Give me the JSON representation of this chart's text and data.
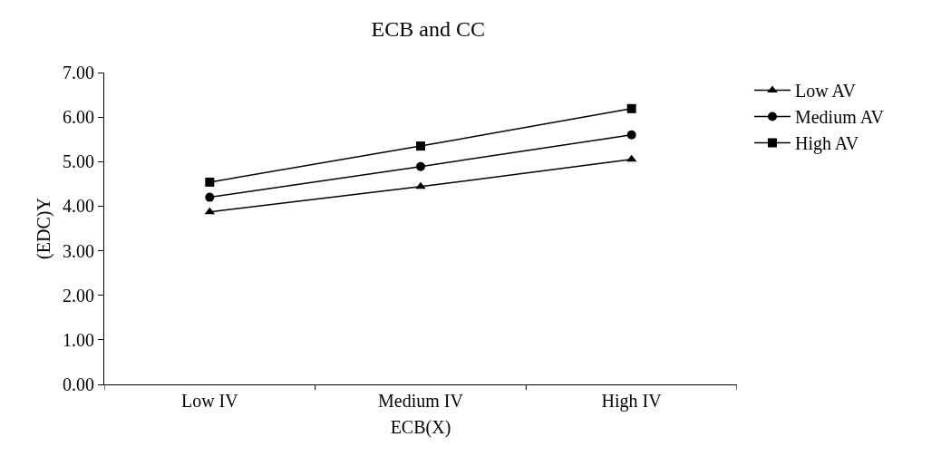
{
  "chart_data": {
    "type": "line",
    "title": "ECB and CC",
    "xlabel": "ECB(X)",
    "ylabel": "(EDC)Y",
    "categories": [
      "Low IV",
      "Medium IV",
      "High IV"
    ],
    "series": [
      {
        "name": "Low AV",
        "color": "#000000",
        "marker": "triangle",
        "values": [
          3.87,
          4.44,
          5.05
        ]
      },
      {
        "name": "Medium AV",
        "color": "#000000",
        "marker": "circle",
        "values": [
          4.2,
          4.89,
          5.6
        ]
      },
      {
        "name": "High AV",
        "color": "#000000",
        "marker": "square",
        "values": [
          4.54,
          5.35,
          6.19
        ]
      }
    ],
    "ylim": [
      0,
      7
    ],
    "yticks": [
      {
        "value": 0,
        "label": "0.00"
      },
      {
        "value": 1,
        "label": "1.00"
      },
      {
        "value": 2,
        "label": "2.00"
      },
      {
        "value": 3,
        "label": "3.00"
      },
      {
        "value": 4,
        "label": "4.00"
      },
      {
        "value": 5,
        "label": "5.00"
      },
      {
        "value": 6,
        "label": "6.00"
      },
      {
        "value": 7,
        "label": "7.00"
      }
    ],
    "grid": false,
    "legend": "right",
    "line_style": "solid"
  }
}
